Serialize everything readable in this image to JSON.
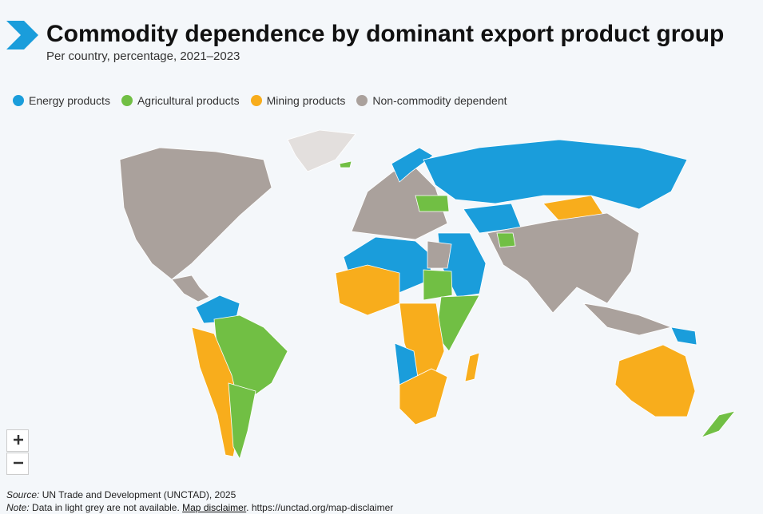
{
  "header": {
    "title": "Commodity dependence by dominant export product group",
    "subtitle": "Per country, percentage, 2021–2023"
  },
  "legend": [
    {
      "label": "Energy products",
      "color": "#1a9ddb"
    },
    {
      "label": "Agricultural products",
      "color": "#71bf44"
    },
    {
      "label": "Mining products",
      "color": "#f8ad1c"
    },
    {
      "label": "Non-commodity dependent",
      "color": "#aaa19c"
    }
  ],
  "no_data_color": "#e3dfdd",
  "footer": {
    "source_label": "Source:",
    "source": " UN Trade and Development (UNCTAD), 2025",
    "note_label": "Note:",
    "note": " Data in light grey are not available. ",
    "disclaimer_link": "Map disclaimer",
    "disclaimer_text": ". https://unctad.org/map-disclaimer"
  }
}
